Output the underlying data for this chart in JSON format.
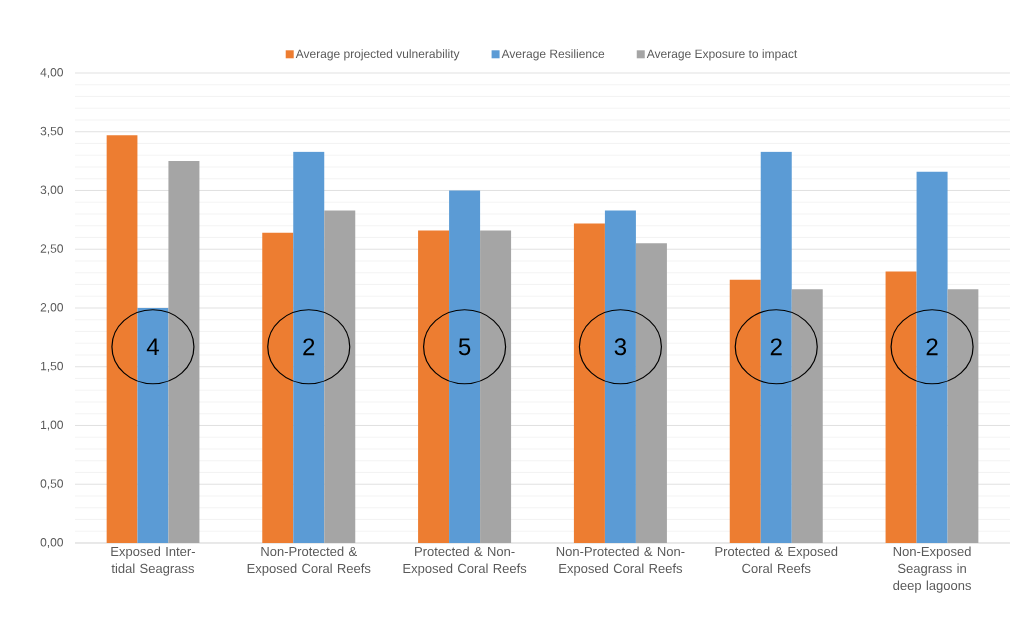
{
  "chart_data": {
    "type": "bar",
    "categories": [
      "Exposed Inter-tidal Seagrass",
      "Non-Protected & Exposed Coral Reefs",
      "Protected & Non-Exposed Coral Reefs",
      "Non-Protected & Non-Exposed Coral Reefs",
      "Protected & Exposed Coral Reefs",
      "Non-Exposed Seagrass in deep lagoons"
    ],
    "series": [
      {
        "name": "Average projected vulnerability",
        "color": "#ed7d31",
        "values": [
          3.47,
          2.64,
          2.66,
          2.72,
          2.24,
          2.31
        ]
      },
      {
        "name": "Average Resilience",
        "color": "#5b9bd5",
        "values": [
          2.0,
          3.33,
          3.0,
          2.83,
          3.33,
          3.16
        ]
      },
      {
        "name": "Average Exposure to impact",
        "color": "#a5a5a5",
        "values": [
          3.25,
          2.83,
          2.66,
          2.55,
          2.16,
          2.16
        ]
      }
    ],
    "ylim": [
      0,
      4
    ],
    "yticks": [
      {
        "value": 0,
        "label": "0,00"
      },
      {
        "value": 0.5,
        "label": "0,50"
      },
      {
        "value": 1,
        "label": "1,00"
      },
      {
        "value": 1.5,
        "label": "1,50"
      },
      {
        "value": 2,
        "label": "2,00"
      },
      {
        "value": 2.5,
        "label": "2,50"
      },
      {
        "value": 3,
        "label": "3,00"
      },
      {
        "value": 3.5,
        "label": "3,50"
      },
      {
        "value": 4,
        "label": "4,00"
      }
    ],
    "grid": "y",
    "legend": "top",
    "annotations": [
      "4",
      "2",
      "5",
      "3",
      "2",
      "2"
    ]
  }
}
